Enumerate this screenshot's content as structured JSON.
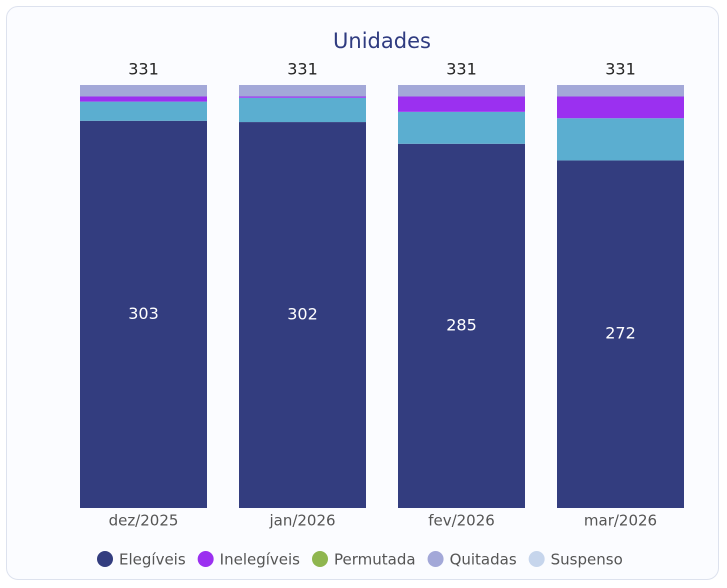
{
  "chart_data": {
    "type": "stacked-bar",
    "title": "Unidades",
    "categories": [
      "dez/2025",
      "jan/2026",
      "fev/2026",
      "mar/2026"
    ],
    "totals": [
      331,
      331,
      331,
      331
    ],
    "series": [
      {
        "name": "Elegíveis",
        "color": "#333d7f",
        "bar_color": "#333d7f",
        "values": [
          303,
          302,
          285,
          272
        ]
      },
      {
        "name": "Inelegíveis",
        "color": "#9b30f0",
        "bar_color": "#9b30f0",
        "values": [
          4,
          1,
          12,
          17
        ]
      },
      {
        "name": "Permutada",
        "color": "#8fb64f",
        "bar_color": "#8fb64f",
        "values": [
          0,
          0,
          0,
          0
        ]
      },
      {
        "name": "Quitadas",
        "color": "#a3a8d8",
        "bar_color": "#a3a8d8",
        "values": [
          9,
          9,
          9,
          9
        ]
      },
      {
        "name": "Suspenso",
        "color": "#c6d5ec",
        "bar_color": "#5baed0",
        "values": [
          15,
          19,
          25,
          33
        ]
      }
    ],
    "value_label_series": 0
  }
}
